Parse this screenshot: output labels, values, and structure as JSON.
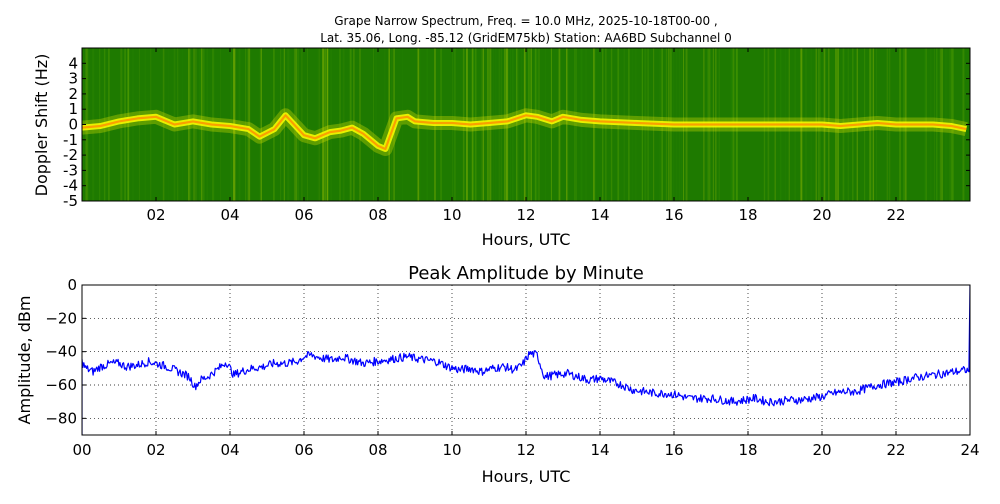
{
  "chart_data": [
    {
      "type": "heatmap",
      "title_line1": "Grape Narrow Spectrum, Freq. = 10.0 MHz, 2025-10-18T00-00 ,",
      "title_line2": "Lat.  35.06, Long. -85.12 (GridEM75kb) Station: AA6BD Subchannel 0",
      "xlabel": "Hours, UTC",
      "ylabel": "Doppler Shift (Hz)",
      "xlim": [
        0,
        24
      ],
      "ylim": [
        -5,
        5
      ],
      "xticks": [
        2,
        4,
        6,
        8,
        10,
        12,
        14,
        16,
        18,
        20,
        22
      ],
      "xtick_labels": [
        "02",
        "04",
        "06",
        "08",
        "10",
        "12",
        "14",
        "16",
        "18",
        "20",
        "22"
      ],
      "yticks": [
        -5,
        -4,
        -3,
        -2,
        -1,
        0,
        1,
        2,
        3,
        4
      ],
      "ytick_labels": [
        "-5",
        "-4",
        "-3",
        "-2",
        "-1",
        "0",
        "1",
        "2",
        "3",
        "4"
      ],
      "colormap": [
        "#006400",
        "#2e8b00",
        "#7fbf00",
        "#d4e000",
        "#ffff00",
        "#ff8c00",
        "#ff0000"
      ],
      "background_color": "#1e7a00",
      "doppler_trace": {
        "hours": [
          0,
          0.5,
          1,
          1.5,
          2,
          2.5,
          3,
          3.5,
          4,
          4.5,
          4.8,
          5.2,
          5.5,
          6,
          6.3,
          6.7,
          7,
          7.3,
          7.6,
          8,
          8.2,
          8.5,
          8.8,
          9,
          9.5,
          10,
          10.5,
          11,
          11.5,
          12,
          12.3,
          12.7,
          13,
          13.5,
          14,
          15,
          16,
          17,
          18,
          19,
          20,
          20.5,
          21,
          21.5,
          22,
          22.5,
          23,
          23.5,
          23.9
        ],
        "shift_hz": [
          -0.2,
          -0.1,
          0.2,
          0.4,
          0.5,
          0,
          0.2,
          0,
          -0.1,
          -0.3,
          -0.8,
          -0.3,
          0.6,
          -0.7,
          -0.9,
          -0.5,
          -0.4,
          -0.2,
          -0.6,
          -1.4,
          -1.6,
          0.4,
          0.5,
          0.2,
          0.1,
          0.1,
          0,
          0.1,
          0.2,
          0.6,
          0.5,
          0.2,
          0.5,
          0.3,
          0.2,
          0.1,
          0,
          0,
          0,
          0,
          0,
          -0.1,
          0,
          0.1,
          0,
          0,
          0,
          -0.1,
          -0.3
        ]
      }
    },
    {
      "type": "line",
      "title": "Peak Amplitude by Minute",
      "xlabel": "Hours, UTC",
      "ylabel": "Amplitude, dBm",
      "xlim": [
        0,
        24
      ],
      "ylim": [
        -90,
        0
      ],
      "xticks": [
        0,
        2,
        4,
        6,
        8,
        10,
        12,
        14,
        16,
        18,
        20,
        22,
        24
      ],
      "xtick_labels": [
        "00",
        "02",
        "04",
        "06",
        "08",
        "10",
        "12",
        "14",
        "16",
        "18",
        "20",
        "22",
        "24"
      ],
      "yticks": [
        0,
        -20,
        -40,
        -60,
        -80
      ],
      "ytick_labels": [
        "0",
        "−20",
        "−40",
        "−60",
        "−80"
      ],
      "grid": true,
      "line_color": "#0000ff",
      "series": [
        {
          "x": [
            0,
            0.1,
            0.3,
            0.5,
            0.8,
            1.0,
            1.2,
            1.5,
            1.8,
            2.0,
            2.3,
            2.6,
            2.9,
            3.05,
            3.2,
            3.4,
            3.7,
            3.9,
            4.1,
            4.3,
            4.6,
            4.9,
            5.2,
            5.5,
            5.8,
            6.0,
            6.2,
            6.5,
            6.8,
            7.0,
            7.3,
            7.6,
            7.9,
            8.2,
            8.5,
            8.8,
            9.0,
            9.3,
            9.6,
            9.9,
            10.2,
            10.5,
            10.8,
            11.1,
            11.4,
            11.7,
            11.9,
            12.1,
            12.3,
            12.5,
            12.8,
            13.1,
            13.4,
            13.7,
            14.0,
            14.3,
            14.6,
            14.9,
            15.2,
            15.5,
            15.8,
            16.1,
            16.4,
            16.7,
            17.0,
            17.3,
            17.6,
            17.9,
            18.2,
            18.5,
            18.8,
            19.1,
            19.4,
            19.7,
            20.0,
            20.3,
            20.6,
            20.9,
            21.2,
            21.5,
            21.8,
            22.1,
            22.4,
            22.7,
            23.0,
            23.3,
            23.6,
            23.9,
            23.97
          ],
          "y": [
            -46,
            -50,
            -52,
            -49,
            -47,
            -47,
            -49,
            -48,
            -46,
            -47,
            -49,
            -52,
            -55,
            -61,
            -57,
            -55,
            -50,
            -46,
            -54,
            -52,
            -50,
            -49,
            -47,
            -47,
            -46,
            -43,
            -42,
            -44,
            -45,
            -43,
            -45,
            -47,
            -46,
            -45,
            -44,
            -43,
            -44,
            -45,
            -46,
            -49,
            -51,
            -50,
            -52,
            -50,
            -49,
            -51,
            -48,
            -41,
            -42,
            -55,
            -54,
            -53,
            -55,
            -57,
            -56,
            -58,
            -60,
            -63,
            -64,
            -65,
            -65,
            -66,
            -68,
            -68,
            -68,
            -69,
            -70,
            -69,
            -68,
            -70,
            -70,
            -69,
            -69,
            -68,
            -67,
            -65,
            -64,
            -64,
            -62,
            -60,
            -59,
            -58,
            -56,
            -55,
            -54,
            -53,
            -52,
            -51,
            -52
          ]
        }
      ]
    }
  ]
}
